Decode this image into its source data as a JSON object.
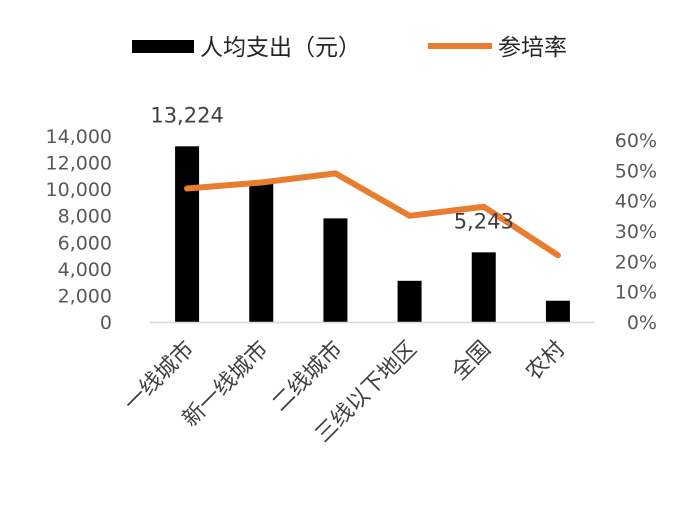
{
  "chart_data": {
    "type": "bar",
    "categories": [
      "一线城市",
      "新一线城市",
      "二线城市",
      "三线以下地区",
      "全国",
      "农村"
    ],
    "series": [
      {
        "name": "人均支出（元）",
        "type": "bar",
        "axis": "left",
        "color": "#000000",
        "values": [
          13224,
          10600,
          7800,
          3100,
          5243,
          1600
        ]
      },
      {
        "name": "参培率",
        "type": "line",
        "axis": "right",
        "color": "#E87D2F",
        "values": [
          0.44,
          0.46,
          0.49,
          0.35,
          0.38,
          0.22
        ]
      }
    ],
    "y_left": {
      "range": [
        0,
        14000
      ],
      "ticks": [
        0,
        2000,
        4000,
        6000,
        8000,
        10000,
        12000,
        14000
      ],
      "tick_labels": [
        "0",
        "2,000",
        "4,000",
        "6,000",
        "8,000",
        "10,000",
        "12,000",
        "14,000"
      ]
    },
    "y_right": {
      "range": [
        0,
        0.6
      ],
      "ticks": [
        0,
        0.1,
        0.2,
        0.3,
        0.4,
        0.5,
        0.6
      ],
      "tick_labels": [
        "0%",
        "10%",
        "20%",
        "30%",
        "40%",
        "50%",
        "60%"
      ]
    },
    "data_labels": [
      {
        "category_index": 0,
        "text": "13,224"
      },
      {
        "category_index": 4,
        "text": "5,243"
      }
    ],
    "legend": {
      "position": "top",
      "items": [
        "人均支出（元）",
        "参培率"
      ]
    },
    "grid": false,
    "title": "",
    "xlabel": "",
    "ylabel": ""
  }
}
